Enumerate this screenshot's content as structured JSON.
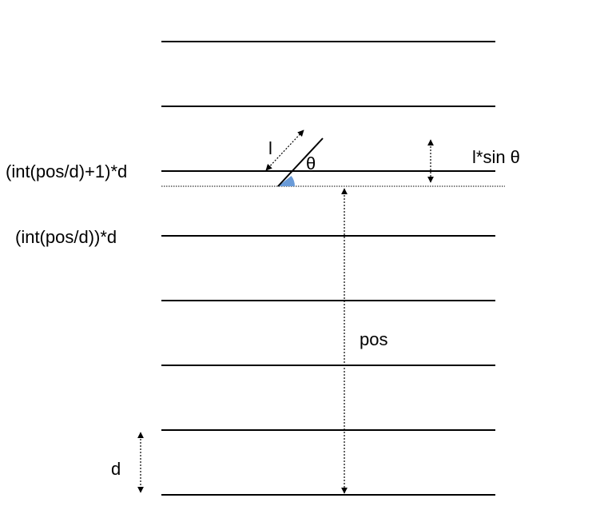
{
  "labels": {
    "upper_line": "(int(pos/d)+1)*d",
    "lower_line": "(int(pos/d))*d",
    "needle_length": "l",
    "angle": "θ",
    "vertical_extent": "l*sin θ",
    "position": "pos",
    "spacing": "d"
  },
  "colors": {
    "line": "#000000",
    "angle_fill": "#6a9bd8",
    "background": "#ffffff"
  },
  "line_count": 8
}
